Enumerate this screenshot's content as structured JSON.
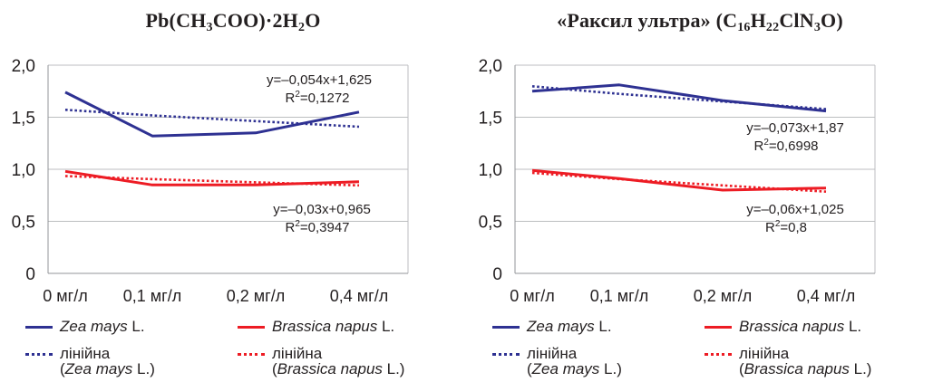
{
  "chart_data": [
    {
      "type": "line",
      "title": "Pb(CH3COO)·2H2O",
      "title_parts": [
        {
          "t": "Pb(CH"
        },
        {
          "sub": "3"
        },
        {
          "t": "COO)·2H"
        },
        {
          "sub": "2"
        },
        {
          "t": "O"
        }
      ],
      "categories": [
        "0 мг/л",
        "0,1 мг/л",
        "0,2 мг/л",
        "0,4 мг/л"
      ],
      "y_ticks": [
        "0",
        "0,5",
        "1,0",
        "1,5",
        "2,0"
      ],
      "ylim": [
        0,
        2.0
      ],
      "grid": "horizontal",
      "series": [
        {
          "name": "Zea mays L.",
          "color": "#2e3192",
          "style": "solid",
          "values": [
            1.74,
            1.32,
            1.35,
            1.55
          ]
        },
        {
          "name": "Brassica napus L.",
          "color": "#ed1c24",
          "style": "solid",
          "values": [
            0.98,
            0.85,
            0.85,
            0.88
          ]
        },
        {
          "name": "лінійна (Zea mays L.)",
          "color": "#2e3192",
          "style": "dotted",
          "values": [
            1.571,
            1.517,
            1.463,
            1.409
          ]
        },
        {
          "name": "лінійна (Brassica napus L.)",
          "color": "#ed1c24",
          "style": "dotted",
          "values": [
            0.935,
            0.905,
            0.875,
            0.845
          ]
        }
      ],
      "annotations": [
        {
          "equation": "y=–0,054x+1,625",
          "r2": "0,1272"
        },
        {
          "equation": "y=–0,03x+0,965",
          "r2": "0,3947"
        }
      ],
      "legend": {
        "position": "bottom",
        "entries": [
          {
            "name": "Zea mays",
            "suffix": " L.",
            "color": "#2e3192",
            "style": "solid"
          },
          {
            "name": "Brassica napus",
            "suffix": " L.",
            "color": "#ed1c24",
            "style": "solid"
          },
          {
            "prefix": "лінійна",
            "name": "Zea mays",
            "suffix": " L.)",
            "open": "(",
            "color": "#2e3192",
            "style": "dotted"
          },
          {
            "prefix": "лінійна",
            "name": "Brassica napus",
            "suffix": " L.)",
            "open": "(",
            "color": "#ed1c24",
            "style": "dotted"
          }
        ]
      }
    },
    {
      "type": "line",
      "title": "«Раксил ультра» (C16H22ClN3O)",
      "title_parts": [
        {
          "t": "«Раксил ультра» (C"
        },
        {
          "sub": "16"
        },
        {
          "t": "H"
        },
        {
          "sub": "22"
        },
        {
          "t": "ClN"
        },
        {
          "sub": "3"
        },
        {
          "t": "O)"
        }
      ],
      "categories": [
        "0 мг/л",
        "0,1 мг/л",
        "0,2 мг/л",
        "0,4 мг/л"
      ],
      "y_ticks": [
        "0",
        "0,5",
        "1,0",
        "1,5",
        "2,0"
      ],
      "ylim": [
        0,
        2.0
      ],
      "grid": "horizontal",
      "series": [
        {
          "name": "Zea mays L.",
          "color": "#2e3192",
          "style": "solid",
          "values": [
            1.75,
            1.81,
            1.66,
            1.56
          ]
        },
        {
          "name": "Brassica napus L.",
          "color": "#ed1c24",
          "style": "solid",
          "values": [
            0.99,
            0.91,
            0.8,
            0.82
          ]
        },
        {
          "name": "лінійна (Zea mays L.)",
          "color": "#2e3192",
          "style": "dotted",
          "values": [
            1.797,
            1.724,
            1.651,
            1.578
          ]
        },
        {
          "name": "лінійна (Brassica napus L.)",
          "color": "#ed1c24",
          "style": "dotted",
          "values": [
            0.965,
            0.905,
            0.845,
            0.785
          ]
        }
      ],
      "annotations": [
        {
          "equation": "y=–0,073x+1,87",
          "r2": "0,6998"
        },
        {
          "equation": "y=–0,06x+1,025",
          "r2": "0,8"
        }
      ],
      "legend": {
        "position": "bottom",
        "entries": [
          {
            "name": "Zea mays",
            "suffix": " L.",
            "color": "#2e3192",
            "style": "solid"
          },
          {
            "name": "Brassica napus",
            "suffix": " L.",
            "color": "#ed1c24",
            "style": "solid"
          },
          {
            "prefix": "лінійна",
            "name": "Zea mays",
            "suffix": " L.)",
            "open": "(",
            "color": "#2e3192",
            "style": "dotted"
          },
          {
            "prefix": "лінійна",
            "name": "Brassica napus",
            "suffix": " L.)",
            "open": "(",
            "color": "#ed1c24",
            "style": "dotted"
          }
        ]
      }
    }
  ]
}
